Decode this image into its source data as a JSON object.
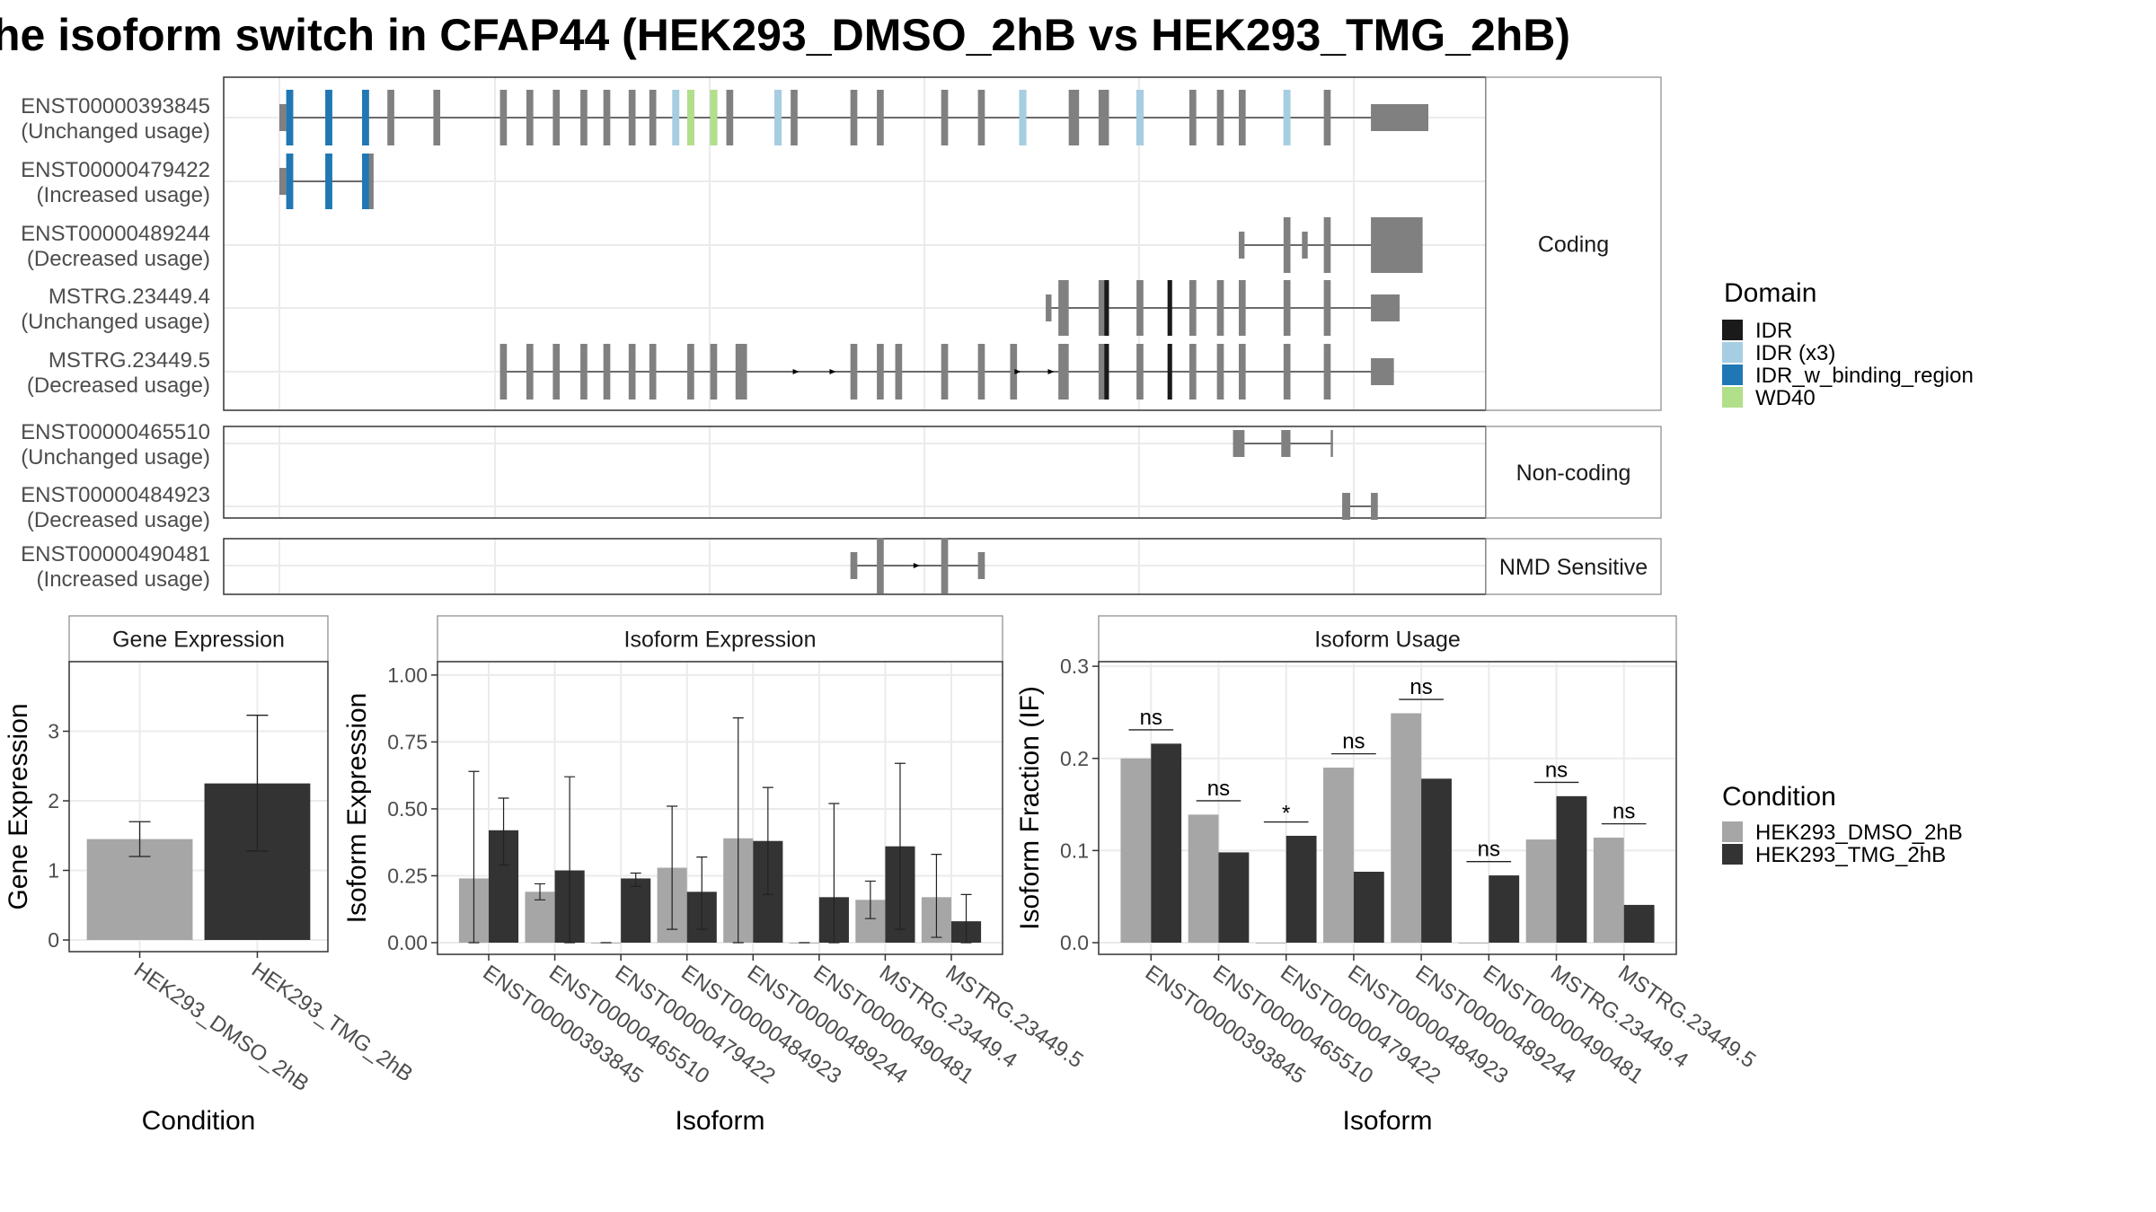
{
  "title": "he isoform switch in CFAP44 (HEK293_DMSO_2hB vs HEK293_TMG_2hB)",
  "colors": {
    "dmso": "#a6a6a6",
    "tmg": "#333333",
    "exon": "#808080",
    "intron": "#404040",
    "panel_border": "#333333",
    "strip_bg": "#ffffff",
    "grid": "#ebebeb",
    "domain_IDR": "#1a1a1a",
    "domain_IDR_x3": "#a6cee3",
    "domain_IDR_w_binding_region": "#1f78b4",
    "domain_WD40": "#b2df8a"
  },
  "transcripts": {
    "groups": [
      {
        "label": "Coding",
        "rows": [
          {
            "id": "ENST00000393845",
            "usage": "(Unchanged usage)",
            "exons": [
              [
                0.0,
                0.006
              ],
              [
                0.006,
                0.012
              ],
              [
                0.04,
                0.046
              ],
              [
                0.072,
                0.078
              ],
              [
                0.094,
                0.1
              ],
              [
                0.134,
                0.14
              ],
              [
                0.192,
                0.198
              ],
              [
                0.215,
                0.221
              ],
              [
                0.238,
                0.244
              ],
              [
                0.262,
                0.268
              ],
              [
                0.282,
                0.288
              ],
              [
                0.304,
                0.31
              ],
              [
                0.322,
                0.328
              ],
              [
                0.342,
                0.348
              ],
              [
                0.355,
                0.361
              ],
              [
                0.375,
                0.381
              ],
              [
                0.389,
                0.395
              ],
              [
                0.431,
                0.437
              ],
              [
                0.445,
                0.451
              ],
              [
                0.497,
                0.503
              ],
              [
                0.52,
                0.526
              ],
              [
                0.576,
                0.582
              ],
              [
                0.608,
                0.614
              ],
              [
                0.644,
                0.65
              ],
              [
                0.687,
                0.696
              ],
              [
                0.713,
                0.722
              ],
              [
                0.746,
                0.752
              ],
              [
                0.792,
                0.798
              ],
              [
                0.816,
                0.822
              ],
              [
                0.835,
                0.841
              ],
              [
                0.874,
                0.88
              ],
              [
                0.909,
                0.915
              ],
              [
                0.95,
                1.0
              ]
            ],
            "thin": [
              [
                0.0,
                0.006
              ],
              [
                0.95,
                1.0
              ]
            ],
            "domains": [
              {
                "name": "IDR_w_binding_region",
                "segments": [
                  [
                    0.006,
                    0.012
                  ],
                  [
                    0.04,
                    0.046
                  ],
                  [
                    0.072,
                    0.078
                  ]
                ]
              },
              {
                "name": "IDR (x3)",
                "segments": [
                  [
                    0.342,
                    0.348
                  ],
                  [
                    0.431,
                    0.437
                  ],
                  [
                    0.644,
                    0.65
                  ],
                  [
                    0.746,
                    0.752
                  ],
                  [
                    0.874,
                    0.88
                  ]
                ]
              },
              {
                "name": "WD40",
                "segments": [
                  [
                    0.355,
                    0.361
                  ],
                  [
                    0.375,
                    0.381
                  ]
                ]
              }
            ],
            "arrows": []
          },
          {
            "id": "ENST00000479422",
            "usage": "(Increased usage)",
            "exons": [
              [
                0.0,
                0.006
              ],
              [
                0.006,
                0.012
              ],
              [
                0.04,
                0.046
              ],
              [
                0.072,
                0.082
              ]
            ],
            "thin": [
              [
                0.0,
                0.006
              ],
              [
                0.078,
                0.082
              ]
            ],
            "domains": [
              {
                "name": "IDR_w_binding_region",
                "segments": [
                  [
                    0.006,
                    0.012
                  ],
                  [
                    0.04,
                    0.046
                  ],
                  [
                    0.072,
                    0.078
                  ]
                ]
              }
            ],
            "arrows": []
          },
          {
            "id": "ENST00000489244",
            "usage": "(Decreased usage)",
            "exons": [
              [
                0.835,
                0.84
              ],
              [
                0.874,
                0.88
              ],
              [
                0.89,
                0.895
              ],
              [
                0.909,
                0.915
              ],
              [
                0.95,
                0.995
              ]
            ],
            "thin": [
              [
                0.835,
                0.84
              ],
              [
                0.89,
                0.895
              ]
            ],
            "domains": [],
            "arrows": []
          },
          {
            "id": "MSTRG.23449.4",
            "usage": "(Unchanged usage)",
            "exons": [
              [
                0.667,
                0.672
              ],
              [
                0.678,
                0.687
              ],
              [
                0.713,
                0.722
              ],
              [
                0.746,
                0.752
              ],
              [
                0.792,
                0.798
              ],
              [
                0.816,
                0.822
              ],
              [
                0.835,
                0.841
              ],
              [
                0.874,
                0.88
              ],
              [
                0.909,
                0.915
              ],
              [
                0.95,
                0.975
              ]
            ],
            "thin": [
              [
                0.667,
                0.672
              ],
              [
                0.95,
                0.975
              ]
            ],
            "domains": [
              {
                "name": "IDR",
                "segments": [
                  [
                    0.718,
                    0.722
                  ],
                  [
                    0.773,
                    0.777
                  ]
                ]
              }
            ],
            "arrows": []
          },
          {
            "id": "MSTRG.23449.5",
            "usage": "(Decreased usage)",
            "exons": [
              [
                0.192,
                0.198
              ],
              [
                0.215,
                0.221
              ],
              [
                0.238,
                0.244
              ],
              [
                0.262,
                0.268
              ],
              [
                0.282,
                0.288
              ],
              [
                0.304,
                0.31
              ],
              [
                0.322,
                0.328
              ],
              [
                0.355,
                0.361
              ],
              [
                0.375,
                0.381
              ],
              [
                0.397,
                0.407
              ],
              [
                0.497,
                0.503
              ],
              [
                0.52,
                0.526
              ],
              [
                0.536,
                0.542
              ],
              [
                0.576,
                0.582
              ],
              [
                0.608,
                0.614
              ],
              [
                0.636,
                0.642
              ],
              [
                0.678,
                0.687
              ],
              [
                0.713,
                0.722
              ],
              [
                0.746,
                0.752
              ],
              [
                0.792,
                0.798
              ],
              [
                0.816,
                0.822
              ],
              [
                0.835,
                0.841
              ],
              [
                0.874,
                0.88
              ],
              [
                0.909,
                0.915
              ],
              [
                0.95,
                0.97
              ]
            ],
            "thin": [
              [
                0.95,
                0.97
              ]
            ],
            "domains": [
              {
                "name": "IDR",
                "segments": [
                  [
                    0.718,
                    0.722
                  ],
                  [
                    0.773,
                    0.777
                  ]
                ]
              }
            ],
            "arrows": [
              0.45,
              0.482,
              0.643,
              0.672
            ]
          }
        ]
      },
      {
        "label": "Non-coding",
        "rows": [
          {
            "id": "ENST00000465510",
            "usage": "(Unchanged usage)",
            "exons": [
              [
                0.83,
                0.84
              ],
              [
                0.872,
                0.88
              ],
              [
                0.915,
                0.917
              ]
            ],
            "thin": [
              [
                0.83,
                0.84
              ],
              [
                0.872,
                0.88
              ],
              [
                0.915,
                0.917
              ]
            ],
            "domains": [],
            "arrows": []
          },
          {
            "id": "ENST00000484923",
            "usage": "(Decreased usage)",
            "exons": [
              [
                0.925,
                0.932
              ],
              [
                0.95,
                0.956
              ]
            ],
            "thin": [
              [
                0.925,
                0.932
              ],
              [
                0.95,
                0.956
              ]
            ],
            "domains": [],
            "arrows": []
          }
        ]
      },
      {
        "label": "NMD Sensitive",
        "rows": [
          {
            "id": "ENST00000490481",
            "usage": "(Increased usage)",
            "exons": [
              [
                0.497,
                0.503
              ],
              [
                0.52,
                0.526
              ],
              [
                0.576,
                0.582
              ],
              [
                0.608,
                0.614
              ]
            ],
            "thin": [
              [
                0.497,
                0.503
              ],
              [
                0.608,
                0.614
              ]
            ],
            "domains": [],
            "arrows": [
              0.555
            ]
          }
        ]
      }
    ]
  },
  "legends": {
    "domain_title": "Domain",
    "domains": [
      {
        "label": "IDR",
        "color": "#1a1a1a"
      },
      {
        "label": "IDR (x3)",
        "color": "#a6cee3"
      },
      {
        "label": "IDR_w_binding_region",
        "color": "#1f78b4"
      },
      {
        "label": "WD40",
        "color": "#b2df8a"
      }
    ],
    "condition_title": "Condition",
    "conditions": [
      {
        "label": "HEK293_DMSO_2hB",
        "color": "#a6a6a6"
      },
      {
        "label": "HEK293_TMG_2hB",
        "color": "#333333"
      }
    ]
  },
  "chart_data": [
    {
      "type": "bar",
      "title": "Gene Expression",
      "xlabel": "Condition",
      "ylabel": "Gene Expression",
      "ylim": [
        0,
        4
      ],
      "yticks": [
        "0",
        "1",
        "2",
        "3"
      ],
      "categories": [
        "HEK293_DMSO_2hB",
        "HEK293_TMG_2hB"
      ],
      "values": [
        1.45,
        2.25
      ],
      "error_low": [
        1.2,
        1.28
      ],
      "error_high": [
        1.7,
        3.23
      ],
      "bar_colors": [
        "#a6a6a6",
        "#333333"
      ]
    },
    {
      "type": "bar",
      "title": "Isoform Expression",
      "xlabel": "Isoform",
      "ylabel": "Isoform Expression",
      "ylim": [
        0,
        1.05
      ],
      "yticks": [
        "0.00",
        "0.25",
        "0.50",
        "0.75",
        "1.00"
      ],
      "categories": [
        "ENST00000393845",
        "ENST00000465510",
        "ENST00000479422",
        "ENST00000484923",
        "ENST00000489244",
        "ENST00000490481",
        "MSTRG.23449.4",
        "MSTRG.23449.5"
      ],
      "series": [
        {
          "name": "HEK293_DMSO_2hB",
          "values": [
            0.24,
            0.19,
            0.0,
            0.28,
            0.39,
            0.0,
            0.16,
            0.17
          ],
          "error_low": [
            0.0,
            0.16,
            0.0,
            0.05,
            0.0,
            0.0,
            0.09,
            0.02
          ],
          "error_high": [
            0.64,
            0.22,
            0.0,
            0.51,
            0.84,
            0.0,
            0.23,
            0.33
          ]
        },
        {
          "name": "HEK293_TMG_2hB",
          "values": [
            0.42,
            0.27,
            0.24,
            0.19,
            0.38,
            0.17,
            0.36,
            0.08
          ],
          "error_low": [
            0.29,
            0.0,
            0.21,
            0.05,
            0.18,
            0.0,
            0.05,
            0.0
          ],
          "error_high": [
            0.54,
            0.62,
            0.26,
            0.32,
            0.58,
            0.52,
            0.67,
            0.18
          ]
        }
      ]
    },
    {
      "type": "bar",
      "title": "Isoform Usage",
      "xlabel": "Isoform",
      "ylabel": "Isoform Fraction (IF)",
      "ylim": [
        0,
        0.305
      ],
      "yticks": [
        "0.0",
        "0.1",
        "0.2",
        "0.3"
      ],
      "categories": [
        "ENST00000393845",
        "ENST00000465510",
        "ENST00000479422",
        "ENST00000484923",
        "ENST00000489244",
        "ENST00000490481",
        "MSTRG.23449.4",
        "MSTRG.23449.5"
      ],
      "series": [
        {
          "name": "HEK293_DMSO_2hB",
          "values": [
            0.2,
            0.139,
            0.0,
            0.19,
            0.249,
            0.0,
            0.112,
            0.114
          ]
        },
        {
          "name": "HEK293_TMG_2hB",
          "values": [
            0.216,
            0.098,
            0.116,
            0.077,
            0.178,
            0.073,
            0.159,
            0.041
          ]
        }
      ],
      "significance": [
        "ns",
        "ns",
        "*",
        "ns",
        "ns",
        "ns",
        "ns",
        "ns"
      ],
      "significance_level": [
        0.231,
        0.154,
        0.131,
        0.205,
        0.264,
        0.088,
        0.174,
        0.129
      ]
    }
  ]
}
